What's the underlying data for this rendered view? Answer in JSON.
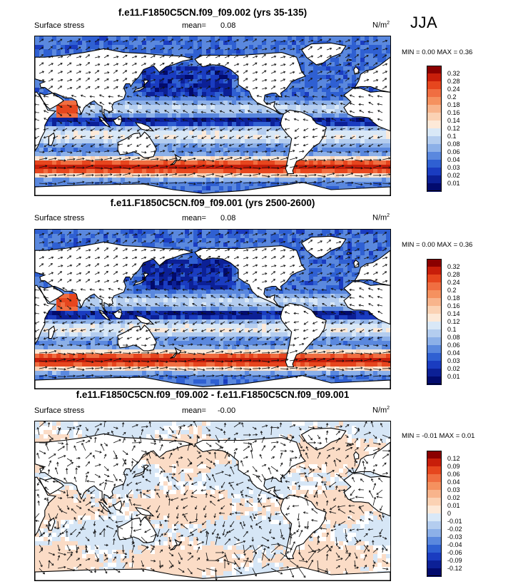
{
  "season": "JJA",
  "panels": [
    {
      "title": "f.e11.F1850C5CN.f09_f09.002 (yrs 35-135)",
      "left_label": "Surface stress",
      "mean_label": "mean=",
      "mean_value": "0.08",
      "units": "N/m",
      "units_exp": "2",
      "minmax": "MIN =   0.00 MAX =   0.36",
      "kind": "field"
    },
    {
      "title": "f.e11.F1850C5CN.f09_f09.001 (yrs 2500-2600)",
      "left_label": "Surface stress",
      "mean_label": "mean=",
      "mean_value": "0.08",
      "units": "N/m",
      "units_exp": "2",
      "minmax": "MIN =   0.00 MAX =   0.36",
      "kind": "field"
    },
    {
      "title": "f.e11.F1850C5CN.f09_f09.002 - f.e11.F1850C5CN.f09_f09.001",
      "left_label": "Surface stress",
      "mean_label": "mean=",
      "mean_value": "-0.00",
      "units": "N/m",
      "units_exp": "2",
      "minmax": "MIN =  -0.01 MAX =   0.01",
      "kind": "diff"
    }
  ],
  "colorbar_field": {
    "labels": [
      "0.32",
      "0.28",
      "0.24",
      "0.2",
      "0.18",
      "0.16",
      "0.14",
      "0.12",
      "0.1",
      "0.08",
      "0.06",
      "0.04",
      "0.03",
      "0.02",
      "0.01"
    ],
    "colors": [
      "#8b0000",
      "#c81e0a",
      "#e6461e",
      "#f06e41",
      "#f5915f",
      "#f8b48c",
      "#fbd2b4",
      "#fde9d8",
      "#d9e8f7",
      "#b4cdef",
      "#8cb0e8",
      "#5a88de",
      "#2f60d2",
      "#1a3cc0",
      "#0c2096",
      "#020b6e"
    ]
  },
  "colorbar_diff": {
    "labels": [
      "0.12",
      "0.09",
      "0.06",
      "0.04",
      "0.03",
      "0.02",
      "0.01",
      "0",
      "-0.01",
      "-0.02",
      "-0.03",
      "-0.04",
      "-0.06",
      "-0.09",
      "-0.12"
    ],
    "colors": [
      "#8b0000",
      "#c81e0a",
      "#e6461e",
      "#f06e41",
      "#f5915f",
      "#f8b48c",
      "#fbd2b4",
      "#fde9d8",
      "#d9e8f7",
      "#b4cdef",
      "#8cb0e8",
      "#5a88de",
      "#2f60d2",
      "#1a3cc0",
      "#0c2096",
      "#020b6e"
    ]
  }
}
